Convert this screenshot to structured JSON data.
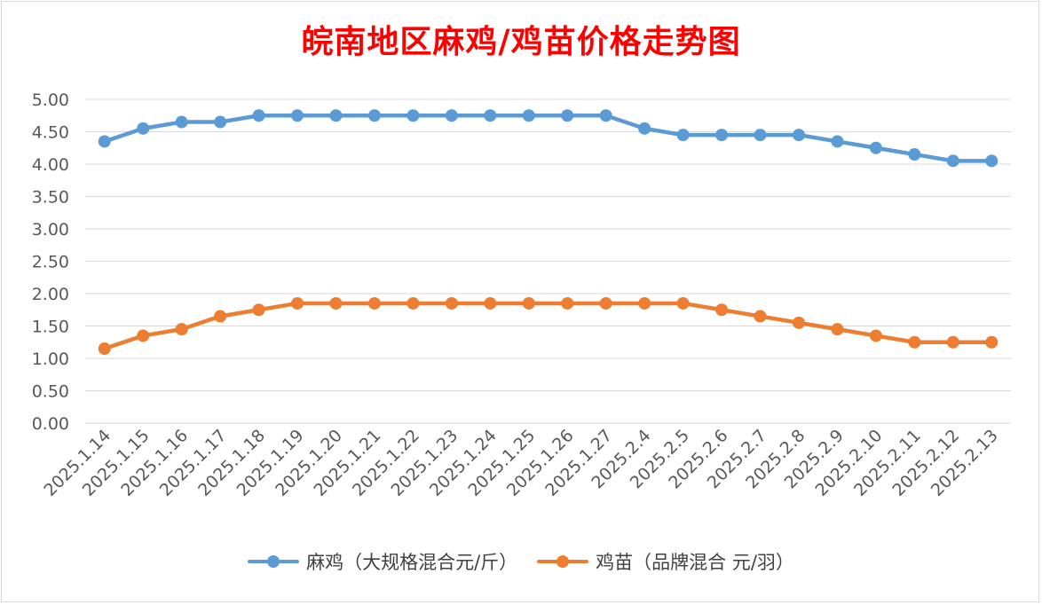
{
  "chart_data": {
    "type": "line",
    "title": "皖南地区麻鸡/鸡苗价格走势图",
    "categories": [
      "2025.1.14",
      "2025.1.15",
      "2025.1.16",
      "2025.1.17",
      "2025.1.18",
      "2025.1.19",
      "2025.1.20",
      "2025.1.21",
      "2025.1.22",
      "2025.1.23",
      "2025.1.24",
      "2025.1.25",
      "2025.1.26",
      "2025.1.27",
      "2025.2.4",
      "2025.2.5",
      "2025.2.6",
      "2025.2.7",
      "2025.2.8",
      "2025.2.9",
      "2025.2.10",
      "2025.2.11",
      "2025.2.12",
      "2025.2.13"
    ],
    "series": [
      {
        "name": "麻鸡（大规格混合元/斤）",
        "color": "#5b9bd5",
        "values": [
          4.35,
          4.55,
          4.65,
          4.65,
          4.75,
          4.75,
          4.75,
          4.75,
          4.75,
          4.75,
          4.75,
          4.75,
          4.75,
          4.75,
          4.55,
          4.45,
          4.45,
          4.45,
          4.45,
          4.35,
          4.25,
          4.15,
          4.05,
          4.05
        ]
      },
      {
        "name": "鸡苗（品牌混合 元/羽）",
        "color": "#ed7d31",
        "values": [
          1.15,
          1.35,
          1.45,
          1.65,
          1.75,
          1.85,
          1.85,
          1.85,
          1.85,
          1.85,
          1.85,
          1.85,
          1.85,
          1.85,
          1.85,
          1.85,
          1.75,
          1.65,
          1.55,
          1.45,
          1.35,
          1.25,
          1.25,
          1.25
        ]
      }
    ],
    "ylim": [
      0,
      5
    ],
    "yticks": [
      "0.00",
      "0.50",
      "1.00",
      "1.50",
      "2.00",
      "2.50",
      "3.00",
      "3.50",
      "4.00",
      "4.50",
      "5.00"
    ],
    "grid": true,
    "legend_position": "bottom",
    "title_color": "#ff0000"
  }
}
